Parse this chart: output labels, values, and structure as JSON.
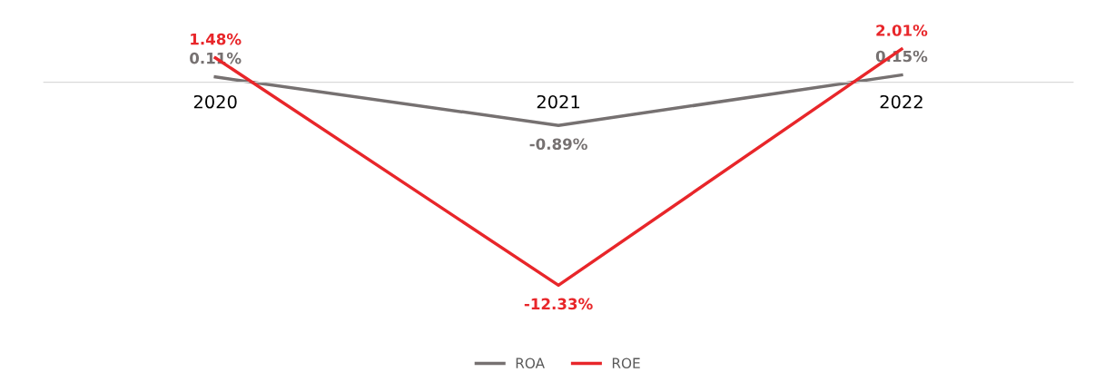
{
  "chart_data": {
    "type": "line",
    "categories": [
      "2020",
      "2021",
      "2022"
    ],
    "series": [
      {
        "name": "ROA",
        "color": "#767171",
        "values": [
          0.11,
          -0.89,
          0.15
        ],
        "value_labels": [
          "0.11%",
          "-0.89%",
          "0.15%"
        ]
      },
      {
        "name": "ROE",
        "color": "#e8262a",
        "axis": "y2",
        "values": [
          1.48,
          -12.33,
          2.01
        ],
        "value_labels": [
          "1.48%",
          "-12.33%",
          "2.01%"
        ]
      }
    ],
    "legend": "bottom",
    "grid": false,
    "marker": "none",
    "line_style": "solid"
  }
}
